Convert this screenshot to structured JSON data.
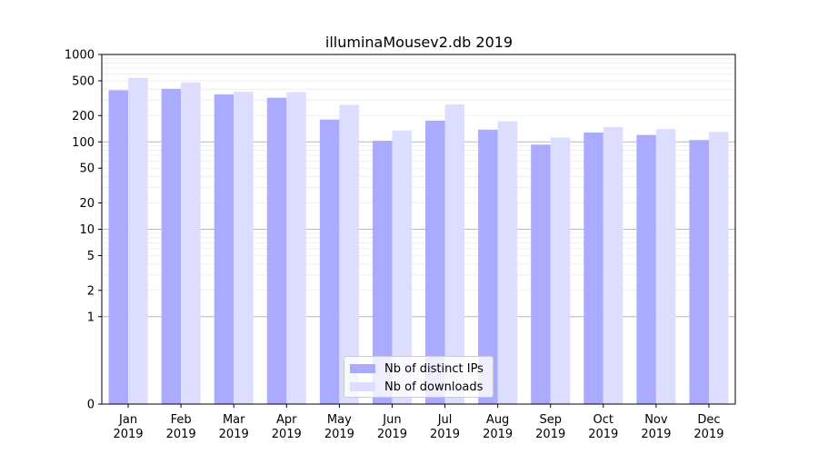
{
  "chart_data": {
    "type": "bar",
    "title": "illuminaMousev2.db 2019",
    "xlabel": "",
    "ylabel": "",
    "y_scale": "symlog",
    "ylim": [
      0,
      1000
    ],
    "categories": [
      "Jan\n2019",
      "Feb\n2019",
      "Mar\n2019",
      "Apr\n2019",
      "May\n2019",
      "Jun\n2019",
      "Jul\n2019",
      "Aug\n2019",
      "Sep\n2019",
      "Oct\n2019",
      "Nov\n2019",
      "Dec\n2019"
    ],
    "y_ticks": [
      0,
      1,
      2,
      5,
      10,
      20,
      50,
      100,
      200,
      500,
      1000
    ],
    "grid": true,
    "legend_position": "lower-center",
    "series": [
      {
        "name": "Nb of distinct IPs",
        "color": "#aaaaff",
        "values": [
          390,
          405,
          350,
          320,
          180,
          103,
          175,
          138,
          93,
          128,
          120,
          105
        ]
      },
      {
        "name": "Nb of downloads",
        "color": "#ddddff",
        "values": [
          540,
          480,
          375,
          370,
          265,
          135,
          268,
          172,
          112,
          148,
          140,
          130
        ]
      }
    ]
  }
}
